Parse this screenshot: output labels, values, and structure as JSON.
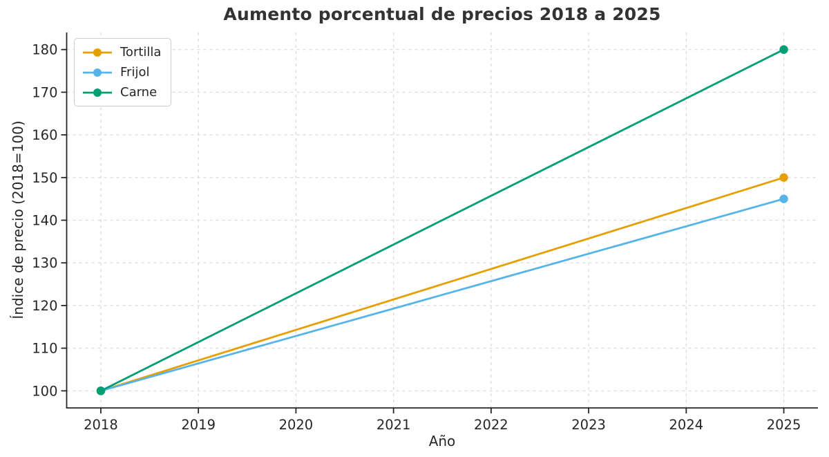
{
  "chart_data": {
    "type": "line",
    "title": "Aumento porcentual de precios 2018 a 2025",
    "xlabel": "Año",
    "ylabel": "Índice de precio (2018=100)",
    "x": [
      2018,
      2025
    ],
    "x_ticks": [
      "2018",
      "2019",
      "2020",
      "2021",
      "2022",
      "2023",
      "2024",
      "2025"
    ],
    "x_tick_values": [
      2018,
      2019,
      2020,
      2021,
      2022,
      2023,
      2024,
      2025
    ],
    "y_ticks": [
      "100",
      "110",
      "120",
      "130",
      "140",
      "150",
      "160",
      "170",
      "180"
    ],
    "y_tick_values": [
      100,
      110,
      120,
      130,
      140,
      150,
      160,
      170,
      180
    ],
    "xlim": [
      2017.65,
      2025.35
    ],
    "ylim": [
      96,
      184
    ],
    "grid": true,
    "grid_style": "dashed",
    "legend_position": "upper-left",
    "series": [
      {
        "name": "Tortilla",
        "color": "#E69F00",
        "values": [
          100,
          150
        ]
      },
      {
        "name": "Frijol",
        "color": "#56B4E9",
        "values": [
          100,
          145
        ]
      },
      {
        "name": "Carne",
        "color": "#009E73",
        "values": [
          100,
          180
        ]
      }
    ],
    "style": {
      "text_color": "#262626",
      "title_color": "#333333",
      "grid_color": "#d8d8d8",
      "spine_color": "#262626",
      "background": "#ffffff"
    }
  }
}
